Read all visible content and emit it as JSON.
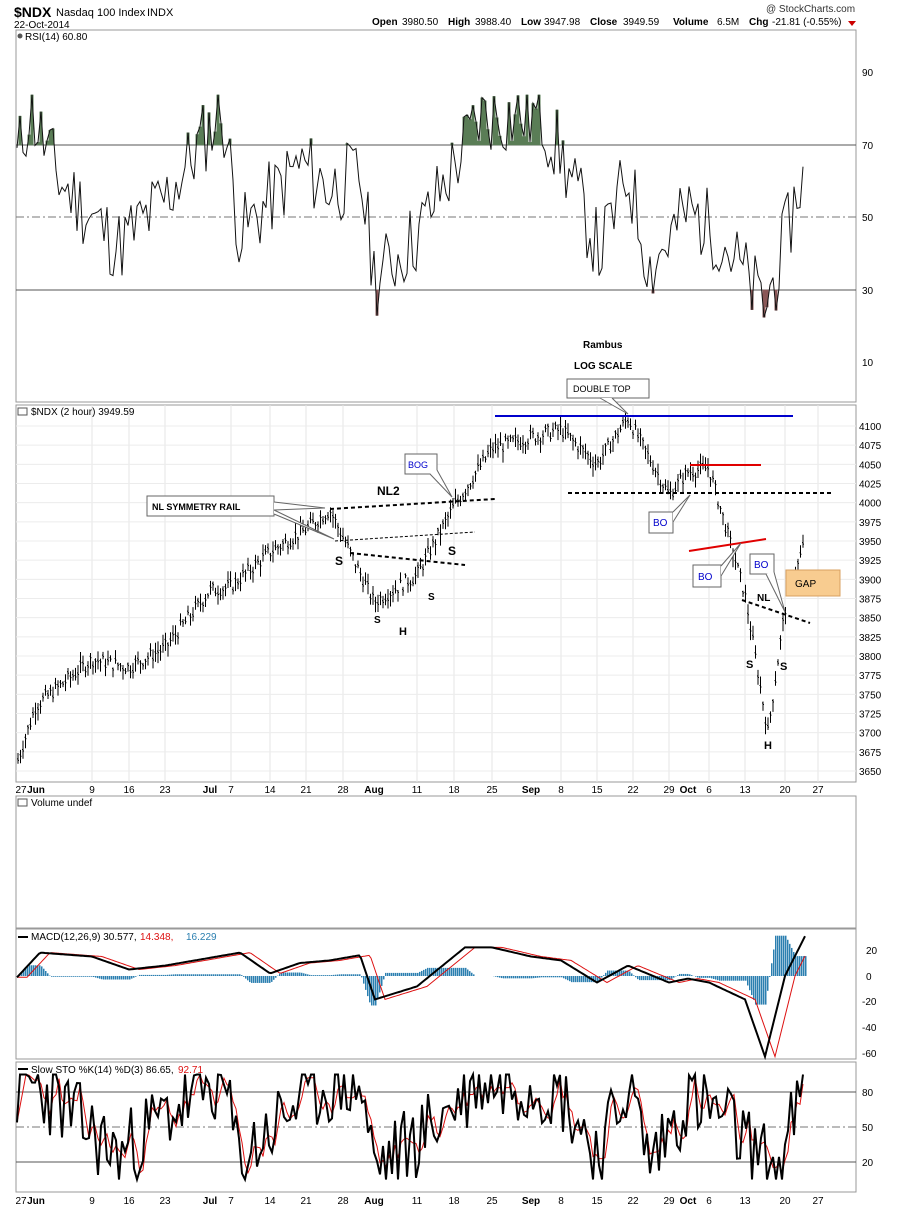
{
  "header": {
    "symbol": "$NDX",
    "name": "Nasdaq 100 Index",
    "exchange": "INDX",
    "date": "22-Oct-2014",
    "brand": "@ StockCharts.com",
    "open_label": "Open",
    "open": "3980.50",
    "high_label": "High",
    "high": "3988.40",
    "low_label": "Low",
    "low": "3947.98",
    "close_label": "Close",
    "close": "3949.59",
    "volume_label": "Volume",
    "volume": "6.5M",
    "chg_label": "Chg",
    "chg": "-21.81 (-0.55%)"
  },
  "rsi_panel": {
    "legend": "RSI(14) 60.80",
    "levels": [
      "90",
      "70",
      "50",
      "30",
      "10"
    ]
  },
  "price_panel": {
    "legend": "$NDX (2 hour) 3949.59",
    "y_ticks": [
      "4100",
      "4075",
      "4050",
      "4025",
      "4000",
      "3975",
      "3950",
      "3925",
      "3900",
      "3875",
      "3850",
      "3825",
      "3800",
      "3775",
      "3750",
      "3725",
      "3700",
      "3675",
      "3650"
    ]
  },
  "x_axis_labels": [
    "27",
    "Jun",
    "9",
    "16",
    "23",
    "Jul",
    "7",
    "14",
    "21",
    "28",
    "Aug",
    "11",
    "18",
    "25",
    "Sep",
    "8",
    "15",
    "22",
    "29",
    "Oct",
    "6",
    "13",
    "20",
    "27"
  ],
  "annotations": {
    "author": "Rambus",
    "scale": "LOG SCALE",
    "double_top": "DOUBLE TOP",
    "nl2": "NL2",
    "bog": "BOG",
    "symmetry_rail": "NL SYMMETRY RAIL",
    "s_left": "S",
    "s_right": "S",
    "s_small_1": "S",
    "s_small_2": "S",
    "h_mid": "H",
    "bo_1": "BO",
    "bo_2": "BO",
    "bo_3": "BO",
    "nl": "NL",
    "gap": "GAP",
    "s_oct_left": "S",
    "s_oct_right": "S",
    "h_oct": "H"
  },
  "volume_panel": {
    "legend": "Volume undef"
  },
  "macd_panel": {
    "legend_main": "MACD(12,26,9) 30.577,",
    "legend_signal": "14.348,",
    "legend_hist": "16.229",
    "levels": [
      "20",
      "0",
      "-20",
      "-40",
      "-60"
    ]
  },
  "sto_panel": {
    "legend_main": "Slow STO %K(14) %D(3) 86.65,",
    "legend_d": "92.71",
    "levels": [
      "80",
      "50",
      "20"
    ]
  },
  "colors": {
    "blue_line": "#0000cc",
    "red_line": "#e00000",
    "gap_fill": "#f8cc90",
    "rsi_green": "#5a7d56",
    "rsi_red": "#8a5858",
    "macd_hist": "#2b7fb0",
    "signal": "#dd1111"
  },
  "chart_data": {
    "type": "line",
    "title": "$NDX Nasdaq 100 Index INDX",
    "price": {
      "ylim": [
        3650,
        4110
      ],
      "x": [
        "May 27",
        "Jun 2",
        "Jun 9",
        "Jun 16",
        "Jun 23",
        "Jul 1",
        "Jul 7",
        "Jul 14",
        "Jul 21",
        "Jul 28",
        "Aug 1",
        "Aug 11",
        "Aug 18",
        "Aug 25",
        "Sep 2",
        "Sep 8",
        "Sep 15",
        "Sep 22",
        "Sep 29",
        "Oct 1",
        "Oct 6",
        "Oct 13",
        "Oct 17",
        "Oct 20",
        "Oct 22"
      ],
      "values": [
        3660,
        3735,
        3795,
        3785,
        3810,
        3885,
        3890,
        3935,
        3965,
        3990,
        3870,
        3905,
        3995,
        4070,
        4085,
        4095,
        4050,
        4110,
        4010,
        4040,
        4045,
        3880,
        3700,
        3860,
        3950
      ]
    },
    "rsi": {
      "ylim": [
        0,
        100
      ],
      "values": [
        66,
        80,
        60,
        42,
        55,
        80,
        45,
        65,
        58,
        62,
        33,
        45,
        78,
        78,
        78,
        68,
        40,
        62,
        36,
        52,
        45,
        25,
        38,
        60,
        60.8
      ]
    },
    "macd": {
      "ylim": [
        -65,
        30
      ],
      "values": [
        -1,
        18,
        15,
        5,
        8,
        18,
        2,
        10,
        12,
        16,
        -18,
        -8,
        22,
        22,
        15,
        12,
        -5,
        8,
        -5,
        -2,
        -5,
        -18,
        -62,
        0,
        30.6
      ]
    },
    "stochastic": {
      "ylim": [
        0,
        100
      ],
      "values": [
        80,
        88,
        70,
        25,
        60,
        90,
        20,
        75,
        85,
        90,
        15,
        40,
        90,
        90,
        88,
        80,
        25,
        90,
        20,
        75,
        60,
        20,
        15,
        75,
        86.65
      ]
    }
  }
}
